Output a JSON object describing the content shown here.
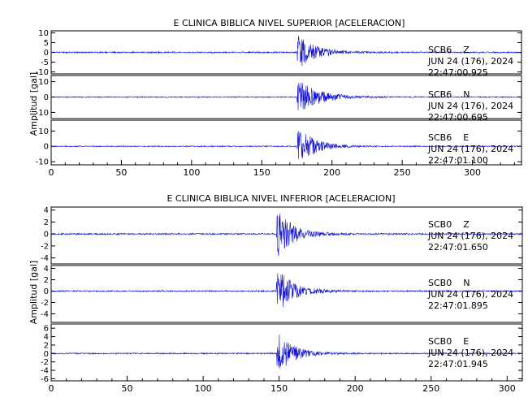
{
  "colors": {
    "trace": "#1010cc",
    "axis": "#000000",
    "background": "#ffffff"
  },
  "chart_data": [
    {
      "type": "line",
      "title": "E CLINICA BIBLICA NIVEL SUPERIOR [ACELERACION]",
      "ylabel": "Amplitud [gal]",
      "xlim": [
        0,
        335
      ],
      "xticks": [
        0,
        50,
        100,
        150,
        200,
        250,
        300
      ],
      "panels": [
        {
          "station": "SCB6",
          "component": "Z",
          "date": "JUN 24 (176), 2024",
          "time": "22:47:00.925",
          "ylim": [
            -11,
            11
          ],
          "yticks": [
            10,
            5,
            0,
            -5,
            -10
          ],
          "envelope": {
            "onset_s": 175,
            "peak": 9.5,
            "noise": 0.35,
            "decay_s": 12
          }
        },
        {
          "station": "SCB6",
          "component": "N",
          "date": "JUN 24 (176), 2024",
          "time": "22:47:00.695",
          "ylim": [
            -14,
            14
          ],
          "yticks": [
            10,
            0,
            -10
          ],
          "envelope": {
            "onset_s": 175,
            "peak": 12.5,
            "noise": 0.35,
            "decay_s": 14
          }
        },
        {
          "station": "SCB6",
          "component": "E",
          "date": "JUN 24 (176), 2024",
          "time": "22:47:01.100",
          "ylim": [
            -12,
            17
          ],
          "yticks": [
            10,
            0,
            -10
          ],
          "envelope": {
            "onset_s": 175,
            "peak": 15,
            "noise": 0.35,
            "decay_s": 11
          }
        }
      ]
    },
    {
      "type": "line",
      "title": "E CLINICA BIBLICA NIVEL INFERIOR [ACELERACION]",
      "ylabel": "Amplitud [gal]",
      "xlim": [
        0,
        310
      ],
      "xticks": [
        0,
        50,
        100,
        150,
        200,
        250,
        300
      ],
      "panels": [
        {
          "station": "SCB0",
          "component": "Z",
          "date": "JUN 24 (176), 2024",
          "time": "22:47:01.650",
          "ylim": [
            -5,
            4.5
          ],
          "yticks": [
            4,
            2,
            0,
            -2,
            -4
          ],
          "envelope": {
            "onset_s": 148,
            "peak": 4.2,
            "noise": 0.12,
            "decay_s": 11
          }
        },
        {
          "station": "SCB0",
          "component": "N",
          "date": "JUN 24 (176), 2024",
          "time": "22:47:01.895",
          "ylim": [
            -5.5,
            4.5
          ],
          "yticks": [
            4,
            2,
            0,
            -2,
            -4
          ],
          "envelope": {
            "onset_s": 148,
            "peak": 4.2,
            "noise": 0.12,
            "decay_s": 11
          }
        },
        {
          "station": "SCB0",
          "component": "E",
          "date": "JUN 24 (176), 2024",
          "time": "22:47:01.945",
          "ylim": [
            -6.5,
            7
          ],
          "yticks": [
            6,
            4,
            2,
            0,
            -2,
            -4,
            -6
          ],
          "envelope": {
            "onset_s": 148,
            "peak": 5.5,
            "noise": 0.15,
            "decay_s": 10
          }
        }
      ]
    }
  ]
}
